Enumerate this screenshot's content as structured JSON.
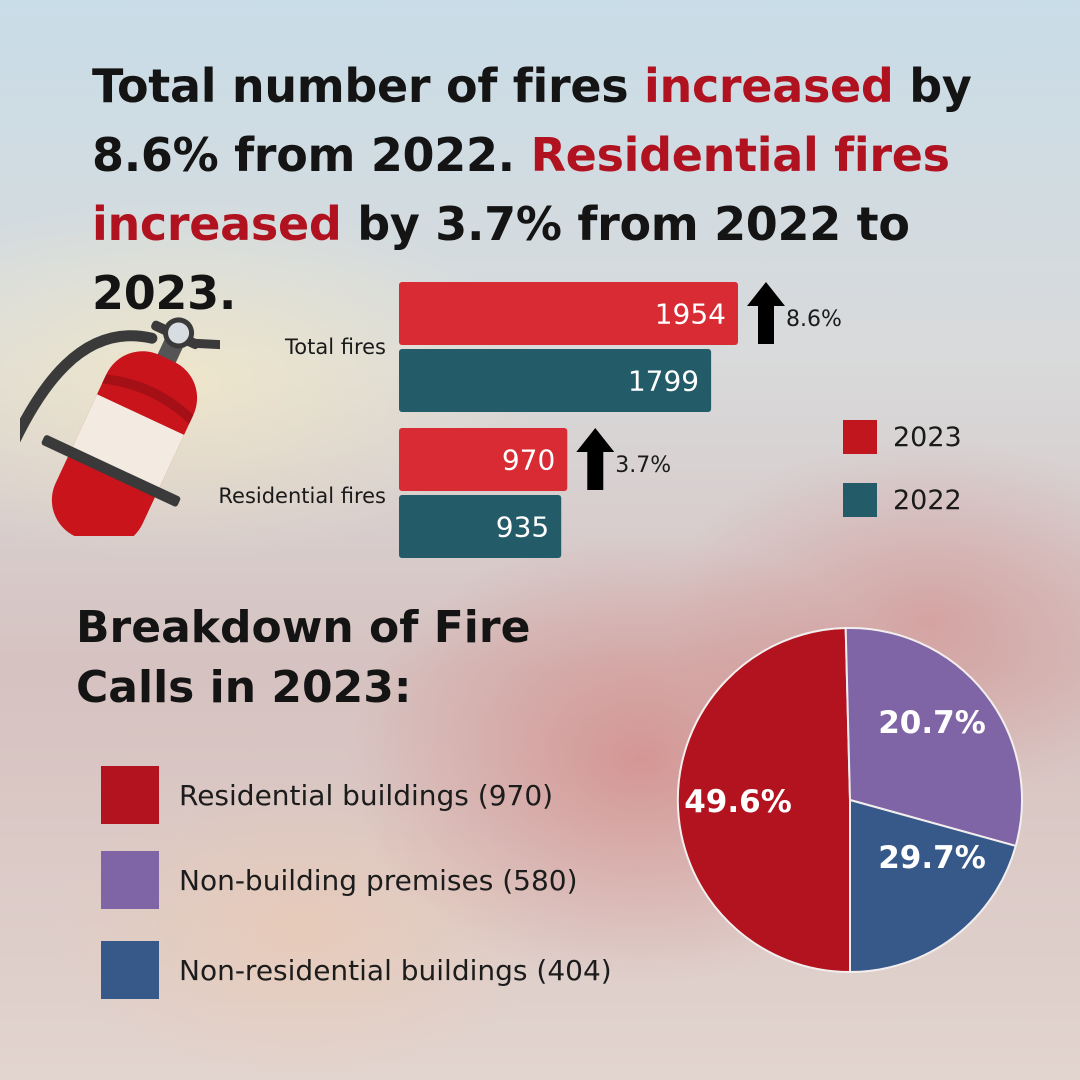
{
  "headline": {
    "part1": "Total number of fires ",
    "part1_highlight": "increased",
    "part2": " by 8.6% from 2022. ",
    "part2_highlight": "Residential fires increased",
    "part3": " by 3.7% from 2022 to 2023."
  },
  "illustration": {
    "icon": "fire-extinguisher-icon"
  },
  "chart_data": [
    {
      "type": "bar",
      "orientation": "horizontal",
      "categories": [
        "Total fires",
        "Residential fires"
      ],
      "series": [
        {
          "name": "2023",
          "values": [
            1954,
            970
          ],
          "color": "#d92b33"
        },
        {
          "name": "2022",
          "values": [
            1799,
            935
          ],
          "color": "#235b68"
        }
      ],
      "annotations": [
        {
          "category": "Total fires",
          "label": "8.6%",
          "icon": "arrow-up-icon"
        },
        {
          "category": "Residential fires",
          "label": "3.7%",
          "icon": "arrow-up-icon"
        }
      ],
      "legend_position": "right",
      "grid": false
    },
    {
      "type": "pie",
      "title": "Breakdown of Fire Calls in 2023:",
      "slices": [
        {
          "label": "Residential buildings (970)",
          "value": 49.6,
          "display": "49.6%",
          "color": "#b2131f"
        },
        {
          "label": "Non-building premises (580)",
          "value": 29.7,
          "display": "29.7%",
          "color": "#7f64a6"
        },
        {
          "label": "Non-residential buildings (404)",
          "value": 20.7,
          "display": "20.7%",
          "color": "#37598a"
        }
      ],
      "legend_position": "left"
    }
  ]
}
